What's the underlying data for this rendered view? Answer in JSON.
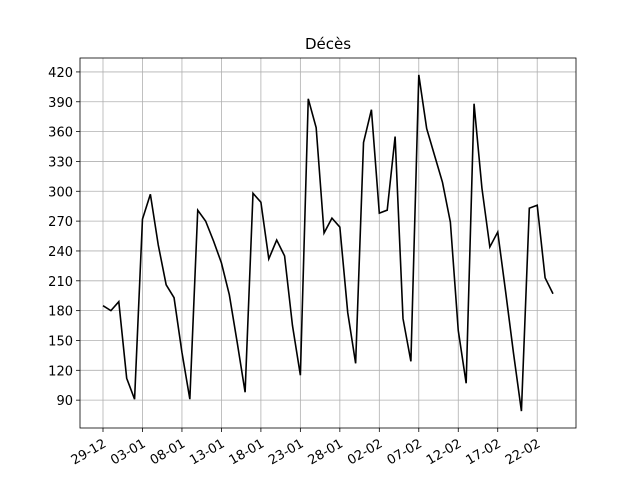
{
  "chart_data": {
    "type": "line",
    "title": "Décès",
    "categories": [
      "29-12",
      null,
      null,
      null,
      null,
      "03-01",
      null,
      null,
      null,
      null,
      "08-01",
      null,
      null,
      null,
      null,
      "13-01",
      null,
      null,
      null,
      null,
      "18-01",
      null,
      null,
      null,
      null,
      "23-01",
      null,
      null,
      null,
      null,
      "28-01",
      null,
      null,
      null,
      null,
      "02-02",
      null,
      null,
      null,
      null,
      "07-02",
      null,
      null,
      null,
      null,
      "12-02",
      null,
      null,
      null,
      null,
      "17-02",
      null,
      null,
      null,
      null,
      "22-02",
      null,
      null
    ],
    "values": [
      185,
      180,
      189,
      112,
      91,
      272,
      297,
      246,
      206,
      193,
      138,
      91,
      281,
      270,
      250,
      228,
      196,
      148,
      98,
      298,
      289,
      232,
      251,
      235,
      165,
      115,
      393,
      364,
      258,
      273,
      264,
      178,
      127,
      349,
      382,
      278,
      281,
      355,
      172,
      129,
      417,
      363,
      336,
      309,
      269,
      160,
      107,
      388,
      303,
      244,
      259,
      199,
      137,
      79,
      283,
      286,
      213,
      197
    ],
    "color": "#000000",
    "ylim": [
      62,
      434
    ],
    "yticks": [
      90,
      120,
      150,
      180,
      210,
      240,
      270,
      300,
      330,
      360,
      390,
      420
    ],
    "grid": true
  }
}
